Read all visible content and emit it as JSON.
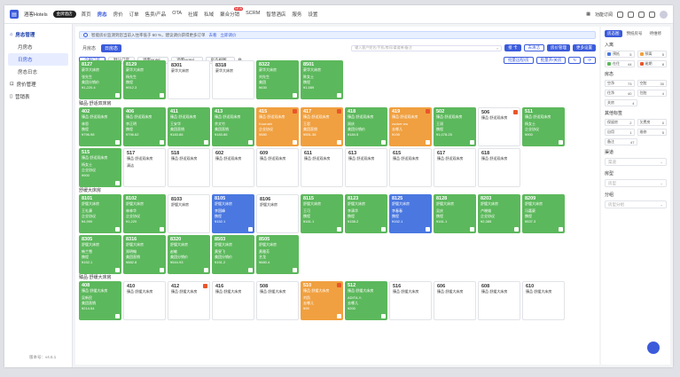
{
  "app": {
    "brand": "酒客Hotels",
    "pill": "金牌酒店"
  },
  "nav": [
    {
      "label": "首页"
    },
    {
      "label": "房态",
      "active": true
    },
    {
      "label": "房价"
    },
    {
      "label": "订单"
    },
    {
      "label": "售卖/产品"
    },
    {
      "label": "OTA"
    },
    {
      "label": "社媒"
    },
    {
      "label": "私域"
    },
    {
      "label": "聚合分销",
      "badge": "NEW"
    },
    {
      "label": "SCRM"
    },
    {
      "label": "智慧酒店"
    },
    {
      "label": "服务"
    },
    {
      "label": "设置"
    }
  ],
  "topright": {
    "func": "功能订阅"
  },
  "sidebar": {
    "group1": "房态管理",
    "items": [
      {
        "label": "月房态"
      },
      {
        "label": "日房态",
        "on": true
      },
      {
        "label": "房态日志"
      }
    ],
    "group2": "房价管理",
    "group3": "营销表",
    "version": "版本号：v4.6.1"
  },
  "notice": {
    "text": "智能房价监测到您当前入住率低于 60 %，建议调价获得更多订单",
    "link1": "去看",
    "link2": "立即调价"
  },
  "tabs": [
    {
      "label": "月房态"
    },
    {
      "label": "日房态",
      "on": true
    }
  ],
  "search_placeholder": "输入客户姓名/手机/房间/渠道单/备注",
  "actions": {
    "checkin": "接 卡",
    "clean": "去清洁",
    "price": "房价管理",
    "more": "更多设置"
  },
  "filters": [
    {
      "label": "全部门店",
      "on": true
    },
    {
      "label": "默认门店"
    },
    {
      "label": "酒客Hotel..."
    },
    {
      "label": "酒客Hotel..."
    },
    {
      "label": "房态视图..."
    }
  ],
  "filter_btns": {
    "batch": "批量远程/房",
    "batch2": "批量开/关房"
  },
  "sections": [
    {
      "title": "",
      "cards": [
        {
          "n": "8127",
          "t": "豪华大床房",
          "c": "green",
          "l": [
            "张先生",
            "美团分销价",
            "¥1,220.4"
          ]
        },
        {
          "n": "8129",
          "t": "豪华大床房",
          "c": "green",
          "l": [
            "杨先生",
            "携程",
            "¥912.3"
          ]
        },
        {
          "n": "8301",
          "t": "豪华大床房",
          "c": "white",
          "l": []
        },
        {
          "n": "8318",
          "t": "豪华大床房",
          "c": "white",
          "l": []
        },
        {
          "n": "8322",
          "t": "豪华大床房",
          "c": "green",
          "l": [
            "刘先生",
            "美团",
            "¥630"
          ]
        },
        {
          "n": "8501",
          "t": "豪华大床房",
          "c": "green",
          "l": [
            "陈女士",
            "携程",
            "¥1,589"
          ]
        }
      ]
    },
    {
      "title": "臻品·舒适双床房",
      "cards": [
        {
          "n": "402",
          "t": "臻品·舒适双床房",
          "c": "green",
          "l": [
            "林思",
            "携程",
            "¥796.98"
          ]
        },
        {
          "n": "406",
          "t": "臻品·舒适双床房",
          "c": "green",
          "l": [
            "李正明",
            "携程",
            "¥796.62"
          ]
        },
        {
          "n": "411",
          "t": "臻品·舒适双床房",
          "c": "green",
          "l": [
            "王安华",
            "美团直销",
            "¥183.86"
          ]
        },
        {
          "n": "413",
          "t": "臻品·舒适双床房",
          "c": "green",
          "l": [
            "余文竹",
            "美团直销",
            "¥183.86"
          ]
        },
        {
          "n": "415",
          "t": "臻品·舒适双床房",
          "c": "orange",
          "l": [
            "Kourosh",
            "企业协议",
            "¥580"
          ]
        },
        {
          "n": "417",
          "t": "臻品·舒适双床房",
          "c": "orange",
          "l": [
            "王君",
            "美团直销",
            "¥551.36"
          ]
        },
        {
          "n": "418",
          "t": "臻品·舒适双床房",
          "c": "green",
          "l": [
            "周庆",
            "美团分销价",
            "¥184.5"
          ]
        },
        {
          "n": "419",
          "t": "臻品·舒适双床房",
          "c": "orange",
          "l": [
            "zucker wu",
            "去哪儿",
            "¥195"
          ]
        },
        {
          "n": "502",
          "t": "臻品·舒适双床房",
          "c": "green",
          "l": [
            "王润",
            "携程",
            "¥1,078.25"
          ]
        },
        {
          "n": "506",
          "t": "臻品·舒适双床房",
          "c": "white",
          "l": []
        },
        {
          "n": "511",
          "t": "臻品·舒适双床房",
          "c": "green",
          "l": [
            "杨女士",
            "企业协议",
            "¥900"
          ]
        },
        {
          "n": "515",
          "t": "臻品·舒适双床房",
          "c": "green",
          "l": [
            "杨女士",
            "企业协议",
            "¥900"
          ]
        },
        {
          "n": "517",
          "t": "臻品·舒适双床房",
          "c": "white",
          "l": [
            "清洁"
          ]
        },
        {
          "n": "518",
          "t": "臻品·舒适双床房",
          "c": "white",
          "l": []
        },
        {
          "n": "602",
          "t": "臻品·舒适双床房",
          "c": "white",
          "l": []
        },
        {
          "n": "609",
          "t": "臻品·舒适双床房",
          "c": "white",
          "l": []
        },
        {
          "n": "611",
          "t": "臻品·舒适双床房",
          "c": "white",
          "l": []
        },
        {
          "n": "613",
          "t": "臻品·舒适双床房",
          "c": "white",
          "l": []
        },
        {
          "n": "615",
          "t": "臻品·舒适双床房",
          "c": "white",
          "l": []
        },
        {
          "n": "617",
          "t": "臻品·舒适双床房",
          "c": "white",
          "l": []
        },
        {
          "n": "618",
          "t": "臻品·舒适双床房",
          "c": "white",
          "l": []
        }
      ]
    },
    {
      "title": "舒缓大床房",
      "cards": [
        {
          "n": "8101",
          "t": "舒缓大床房",
          "c": "green",
          "l": [
            "王礼康",
            "企业协议",
            "¥4,990"
          ]
        },
        {
          "n": "8102",
          "t": "舒缓大床房",
          "c": "green",
          "l": [
            "林林华",
            "企业协议",
            "¥1,220"
          ]
        },
        {
          "n": "8103",
          "t": "舒缓大床房",
          "c": "white",
          "l": []
        },
        {
          "n": "8105",
          "t": "舒缓大床房",
          "c": "blue",
          "l": [
            "李国峰",
            "携程",
            "¥152.1"
          ]
        },
        {
          "n": "8106",
          "t": "舒缓大床房",
          "c": "white",
          "l": []
        },
        {
          "n": "8115",
          "t": "舒缓大床房",
          "c": "green",
          "l": [
            "王可",
            "携程",
            "¥161.1"
          ]
        },
        {
          "n": "8123",
          "t": "舒缓大床房",
          "c": "green",
          "l": [
            "李清华",
            "携程",
            "¥158.2"
          ]
        },
        {
          "n": "8125",
          "t": "舒缓大床房",
          "c": "blue",
          "l": [
            "李春春",
            "携程",
            "¥152.1"
          ]
        },
        {
          "n": "8128",
          "t": "舒缓大床房",
          "c": "green",
          "l": [
            "吴庆",
            "携程",
            "¥161.1"
          ]
        },
        {
          "n": "8203",
          "t": "舒缓大床房",
          "c": "green",
          "l": [
            "卢晓雄",
            "企业协议",
            "¥2,385"
          ]
        },
        {
          "n": "8209",
          "t": "舒缓大床房",
          "c": "green",
          "l": [
            "冯嘉豪",
            "携程",
            "¥537.3"
          ]
        },
        {
          "n": "8305",
          "t": "舒缓大床房",
          "c": "green",
          "l": [
            "韩兰雪",
            "携程",
            "¥152.1"
          ]
        },
        {
          "n": "8316",
          "t": "舒缓大床房",
          "c": "green",
          "l": [
            "郑明翰",
            "美团直销",
            "¥882.8"
          ]
        },
        {
          "n": "8320",
          "t": "舒缓大床房",
          "c": "green",
          "l": [
            "赵敏",
            "美团分销价",
            "¥544.93"
          ]
        },
        {
          "n": "8503",
          "t": "舒缓大床房",
          "c": "green",
          "l": [
            "黄旻飞",
            "美团分销价",
            "¥151.2"
          ]
        },
        {
          "n": "8505",
          "t": "舒缓大床房",
          "c": "green",
          "l": [
            "黄雅芳",
            "艺龙",
            "¥680.4"
          ]
        }
      ]
    },
    {
      "title": "臻品·舒缓大床房",
      "cards": [
        {
          "n": "408",
          "t": "臻品·舒缓大床房",
          "c": "green",
          "l": [
            "吴新民",
            "美团直销",
            "¥214.54"
          ]
        },
        {
          "n": "410",
          "t": "臻品·舒缓大床房",
          "c": "white",
          "l": []
        },
        {
          "n": "412",
          "t": "臻品·舒缓大床房",
          "c": "white",
          "l": []
        },
        {
          "n": "416",
          "t": "臻品·舒缓大床房",
          "c": "white",
          "l": []
        },
        {
          "n": "508",
          "t": "臻品·舒缓大床房",
          "c": "white",
          "l": []
        },
        {
          "n": "510",
          "t": "臻品·舒缓大床房",
          "c": "orange",
          "l": [
            "刘凯",
            "去哪儿",
            "¥95"
          ]
        },
        {
          "n": "512",
          "t": "臻品·舒缓大床房",
          "c": "green",
          "l": [
            "ADITA.Y-",
            "去哪儿",
            "¥200"
          ]
        },
        {
          "n": "516",
          "t": "臻品·舒缓大床房",
          "c": "white",
          "l": []
        },
        {
          "n": "606",
          "t": "臻品·舒缓大床房",
          "c": "white",
          "l": []
        },
        {
          "n": "608",
          "t": "臻品·舒缓大床房",
          "c": "white",
          "l": []
        },
        {
          "n": "610",
          "t": "臻品·舒缓大床房",
          "c": "white",
          "l": []
        }
      ]
    }
  ],
  "right": {
    "tabs": [
      {
        "label": "房态图",
        "on": true
      },
      {
        "label": "预抵房号"
      },
      {
        "label": "待维修"
      }
    ],
    "sec_in": "入离",
    "in_stats": [
      [
        {
          "label": "预抵",
          "v": "5",
          "c": "#4a78e0"
        },
        {
          "label": "预离",
          "v": "5",
          "c": "#f0a040"
        }
      ],
      [
        {
          "label": "在住",
          "v": "44",
          "c": "#5cb85c"
        },
        {
          "label": "逾期",
          "v": "8",
          "c": "#e8562a"
        }
      ]
    ],
    "sec_room": "房态",
    "room_stats": [
      [
        {
          "label": "空净",
          "v": "73"
        },
        {
          "label": "空脏",
          "v": "30"
        }
      ],
      [
        {
          "label": "住净",
          "v": "40"
        },
        {
          "label": "住脏",
          "v": "4"
        }
      ],
      [
        {
          "label": "关房",
          "v": "4"
        }
      ]
    ],
    "sec_other": "其他标签",
    "other_stats": [
      [
        {
          "label": "保留房",
          "v": "2"
        },
        {
          "label": "欠费房",
          "v": "0"
        }
      ],
      [
        {
          "label": "自用",
          "v": "1"
        },
        {
          "label": "维修",
          "v": "5"
        }
      ],
      [
        {
          "label": "备注",
          "v": "47"
        }
      ]
    ],
    "sec_channel": "渠道",
    "ph_channel": "渠道",
    "sec_type": "房型",
    "ph_type": "房型",
    "sec_group": "分组",
    "ph_group": "房型分组"
  }
}
